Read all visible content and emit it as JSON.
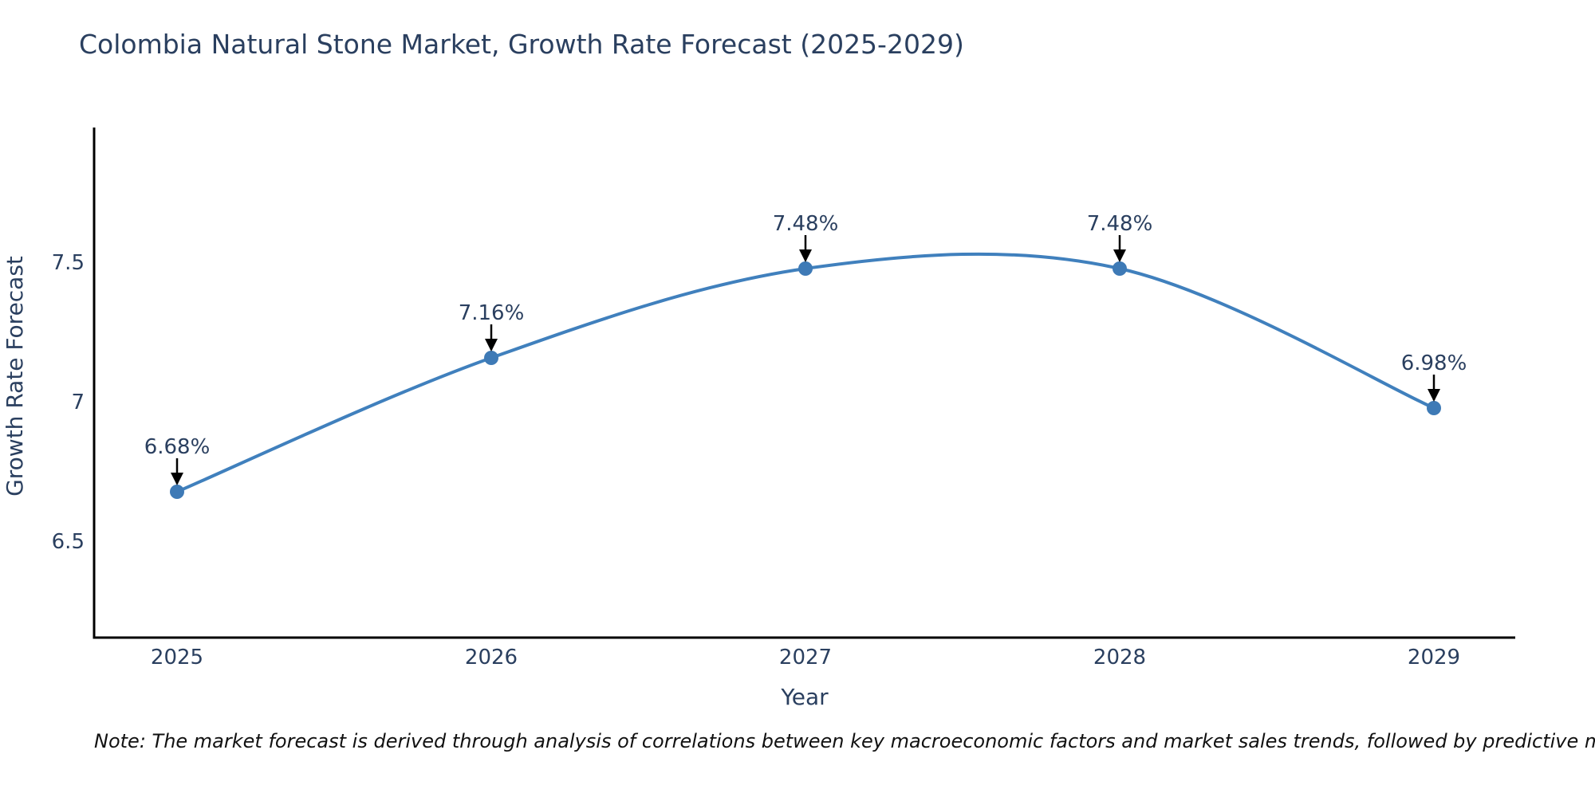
{
  "chart_data": {
    "type": "line",
    "title": "Colombia Natural Stone Market, Growth Rate Forecast (2025-2029)",
    "x": [
      2025,
      2026,
      2027,
      2028,
      2029
    ],
    "values": [
      6.68,
      7.16,
      7.48,
      7.48,
      6.98
    ],
    "series": [
      {
        "name": "Growth Rate Forecast",
        "values": [
          6.68,
          7.16,
          7.48,
          7.48,
          6.98
        ]
      }
    ],
    "point_labels": [
      "6.68%",
      "7.16%",
      "7.48%",
      "7.48%",
      "6.98%"
    ],
    "xlabel": "Year",
    "ylabel": "Growth Rate Forecast",
    "xtick_labels": [
      "2025",
      "2026",
      "2027",
      "2028",
      "2029"
    ],
    "yticks": [
      6.5,
      7,
      7.5
    ],
    "ytick_labels": [
      "6.5",
      "7",
      "7.5"
    ],
    "ylim": [
      6.15,
      7.98
    ],
    "line_shape": "spline",
    "grid": false,
    "legend_position": "none",
    "note": "Note: The market forecast is derived through analysis of correlations between key macroeconomic factors and market sales trends, followed by predictive modeling to project future sales",
    "colors": {
      "line": "#4080bd",
      "marker": "#3e7ab6",
      "text": "#2a3f5f",
      "axis": "#000000",
      "annotation_arrow": "#000000",
      "note": "#111111",
      "background": "#ffffff"
    }
  }
}
